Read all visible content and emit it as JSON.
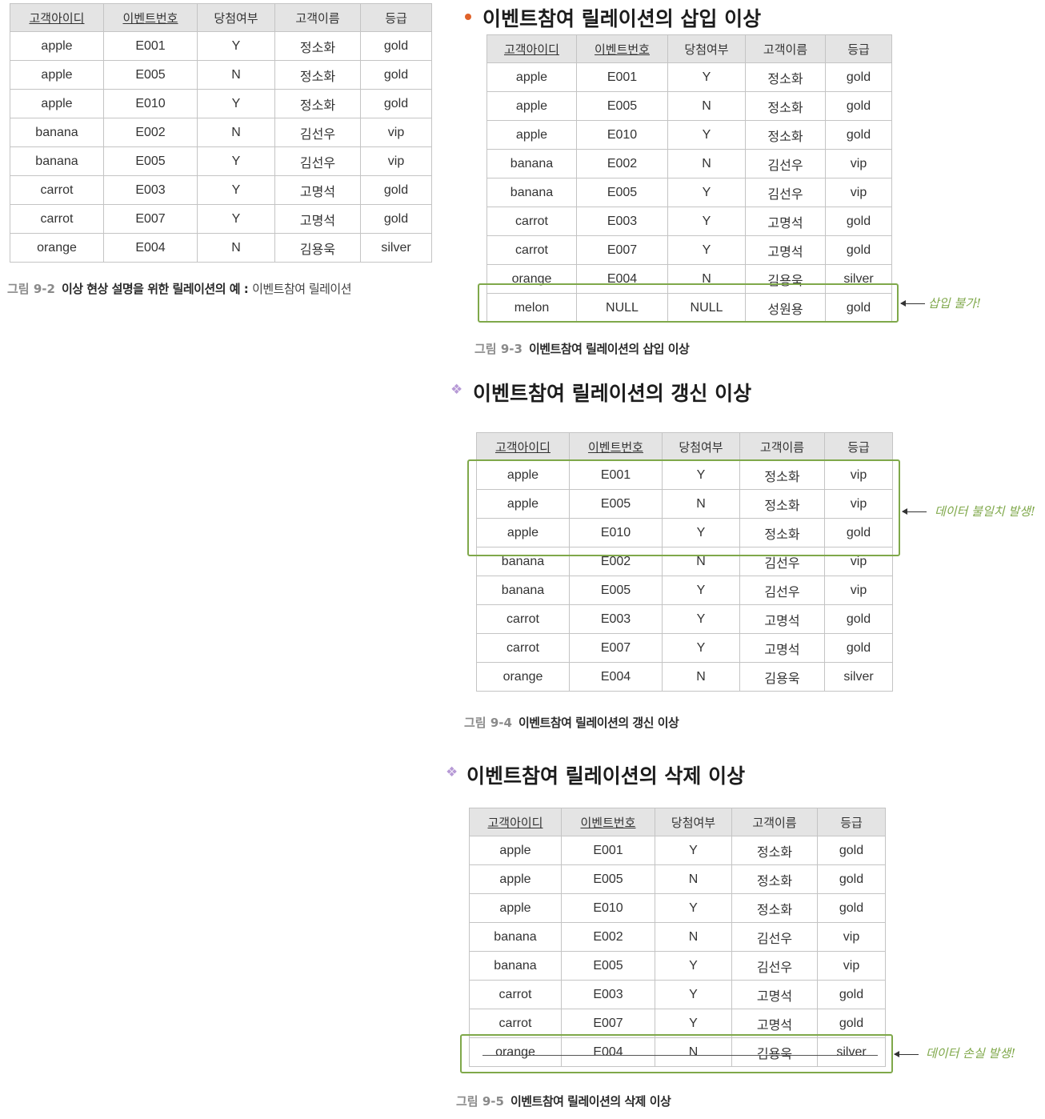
{
  "columns": [
    "고객아이디",
    "이벤트번호",
    "당첨여부",
    "고객이름",
    "등급"
  ],
  "fig2": {
    "caption_num": "그림 9-2",
    "caption_bold": "이상 현상 설명을 위한 릴레이션의 예 :",
    "caption_rest": "이벤트참여 릴레이션",
    "rows": [
      [
        "apple",
        "E001",
        "Y",
        "정소화",
        "gold"
      ],
      [
        "apple",
        "E005",
        "N",
        "정소화",
        "gold"
      ],
      [
        "apple",
        "E010",
        "Y",
        "정소화",
        "gold"
      ],
      [
        "banana",
        "E002",
        "N",
        "김선우",
        "vip"
      ],
      [
        "banana",
        "E005",
        "Y",
        "김선우",
        "vip"
      ],
      [
        "carrot",
        "E003",
        "Y",
        "고명석",
        "gold"
      ],
      [
        "carrot",
        "E007",
        "Y",
        "고명석",
        "gold"
      ],
      [
        "orange",
        "E004",
        "N",
        "김용욱",
        "silver"
      ]
    ]
  },
  "fig3": {
    "heading": "이벤트참여 릴레이션의 삽입 이상",
    "caption_num": "그림 9-3",
    "caption_bold": "이벤트참여 릴레이션의 삽입 이상",
    "note": "삽입 불가!",
    "rows": [
      [
        "apple",
        "E001",
        "Y",
        "정소화",
        "gold"
      ],
      [
        "apple",
        "E005",
        "N",
        "정소화",
        "gold"
      ],
      [
        "apple",
        "E010",
        "Y",
        "정소화",
        "gold"
      ],
      [
        "banana",
        "E002",
        "N",
        "김선우",
        "vip"
      ],
      [
        "banana",
        "E005",
        "Y",
        "김선우",
        "vip"
      ],
      [
        "carrot",
        "E003",
        "Y",
        "고명석",
        "gold"
      ],
      [
        "carrot",
        "E007",
        "Y",
        "고명석",
        "gold"
      ],
      [
        "orange",
        "E004",
        "N",
        "김용욱",
        "silver"
      ],
      [
        "melon",
        "NULL",
        "NULL",
        "성원용",
        "gold"
      ]
    ]
  },
  "fig4": {
    "heading": "이벤트참여 릴레이션의 갱신 이상",
    "caption_num": "그림 9-4",
    "caption_bold": "이벤트참여 릴레이션의 갱신 이상",
    "note": "데이터 불일치 발생!",
    "rows": [
      [
        "apple",
        "E001",
        "Y",
        "정소화",
        "vip"
      ],
      [
        "apple",
        "E005",
        "N",
        "정소화",
        "vip"
      ],
      [
        "apple",
        "E010",
        "Y",
        "정소화",
        "gold"
      ],
      [
        "banana",
        "E002",
        "N",
        "김선우",
        "vip"
      ],
      [
        "banana",
        "E005",
        "Y",
        "김선우",
        "vip"
      ],
      [
        "carrot",
        "E003",
        "Y",
        "고명석",
        "gold"
      ],
      [
        "carrot",
        "E007",
        "Y",
        "고명석",
        "gold"
      ],
      [
        "orange",
        "E004",
        "N",
        "김용욱",
        "silver"
      ]
    ]
  },
  "fig5": {
    "heading": "이벤트참여 릴레이션의 삭제 이상",
    "caption_num": "그림 9-5",
    "caption_bold": "이벤트참여 릴레이션의 삭제 이상",
    "note": "데이터 손실 발생!",
    "rows": [
      [
        "apple",
        "E001",
        "Y",
        "정소화",
        "gold"
      ],
      [
        "apple",
        "E005",
        "N",
        "정소화",
        "gold"
      ],
      [
        "apple",
        "E010",
        "Y",
        "정소화",
        "gold"
      ],
      [
        "banana",
        "E002",
        "N",
        "김선우",
        "vip"
      ],
      [
        "banana",
        "E005",
        "Y",
        "김선우",
        "vip"
      ],
      [
        "carrot",
        "E003",
        "Y",
        "고명석",
        "gold"
      ],
      [
        "carrot",
        "E007",
        "Y",
        "고명석",
        "gold"
      ],
      [
        "orange",
        "E004",
        "N",
        "김용욱",
        "silver"
      ]
    ]
  }
}
